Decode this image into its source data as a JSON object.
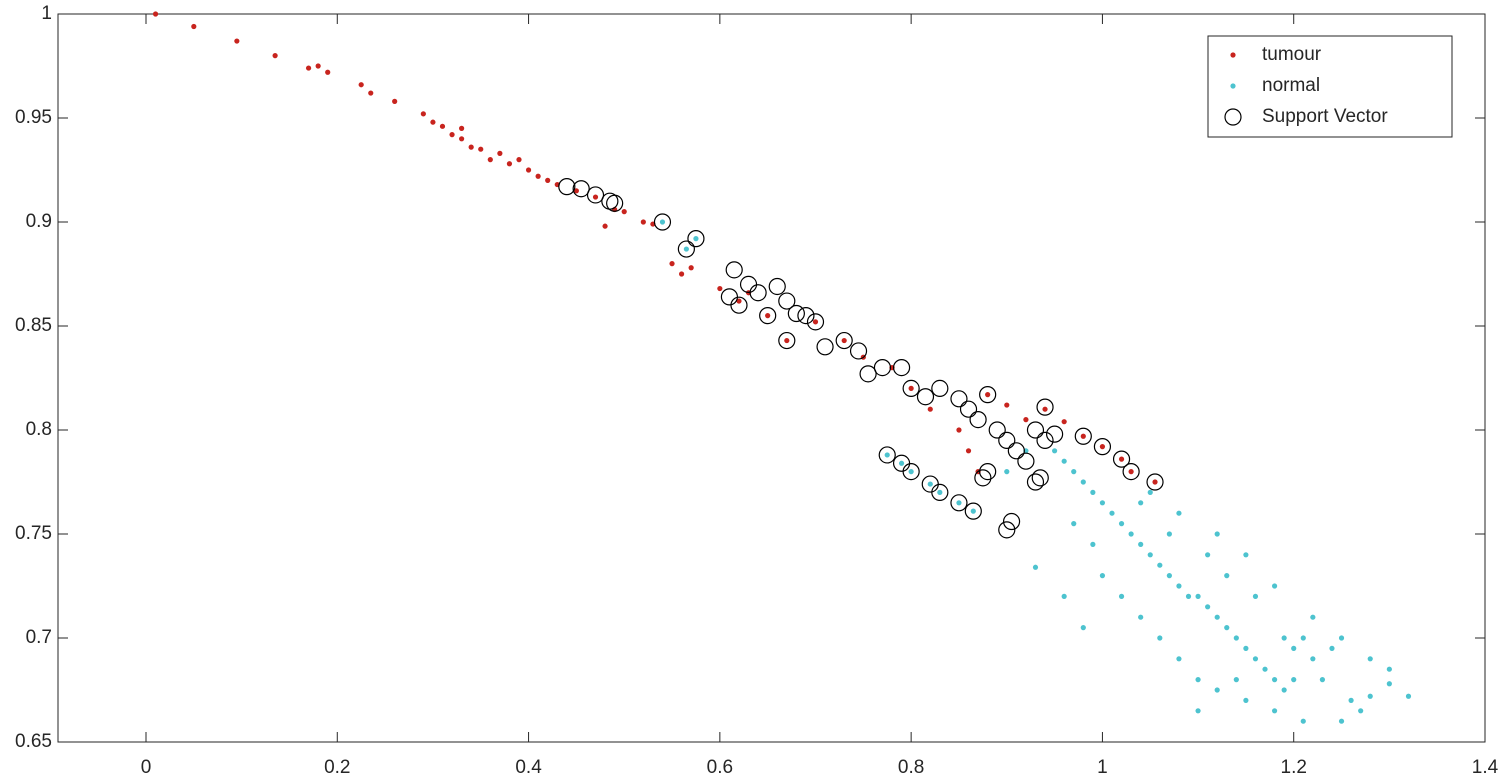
{
  "chart_data": {
    "type": "scatter",
    "xlim": [
      -0.092,
      1.4
    ],
    "ylim": [
      0.65,
      1
    ],
    "xticks": [
      0,
      0.2,
      0.4,
      0.6,
      0.8,
      1,
      1.2,
      1.4
    ],
    "yticks": [
      0.65,
      0.7,
      0.75,
      0.8,
      0.85,
      0.9,
      0.95,
      1
    ],
    "grid": false,
    "legend": "northeast",
    "series": [
      {
        "name": "tumour",
        "color": "#c8241e",
        "marker": "dot",
        "x": [
          0.01,
          0.05,
          0.095,
          0.135,
          0.17,
          0.18,
          0.19,
          0.225,
          0.235,
          0.26,
          0.29,
          0.3,
          0.31,
          0.32,
          0.33,
          0.34,
          0.35,
          0.36,
          0.37,
          0.38,
          0.39,
          0.4,
          0.41,
          0.42,
          0.43,
          0.45,
          0.47,
          0.49,
          0.5,
          0.52,
          0.53,
          0.55,
          0.56,
          0.57,
          0.6,
          0.62,
          0.63,
          0.65,
          0.67,
          0.7,
          0.73,
          0.75,
          0.78,
          0.8,
          0.82,
          0.85,
          0.86,
          0.88,
          0.9,
          0.92,
          0.94,
          0.96,
          0.98,
          1.0,
          1.02,
          1.03,
          1.055,
          0.87,
          0.33,
          0.48
        ],
        "y": [
          1.0,
          0.994,
          0.987,
          0.98,
          0.974,
          0.975,
          0.972,
          0.966,
          0.962,
          0.958,
          0.952,
          0.948,
          0.946,
          0.942,
          0.94,
          0.936,
          0.935,
          0.93,
          0.933,
          0.928,
          0.93,
          0.925,
          0.922,
          0.92,
          0.918,
          0.915,
          0.912,
          0.906,
          0.905,
          0.9,
          0.899,
          0.88,
          0.875,
          0.878,
          0.868,
          0.862,
          0.866,
          0.855,
          0.843,
          0.852,
          0.843,
          0.835,
          0.83,
          0.82,
          0.81,
          0.8,
          0.79,
          0.817,
          0.812,
          0.805,
          0.81,
          0.804,
          0.797,
          0.792,
          0.786,
          0.78,
          0.775,
          0.78,
          0.945,
          0.898
        ]
      },
      {
        "name": "normal",
        "color": "#4dc3cf",
        "marker": "dot",
        "x": [
          0.54,
          0.565,
          0.575,
          0.775,
          0.79,
          0.8,
          0.82,
          0.83,
          0.85,
          0.865,
          0.93,
          0.95,
          0.96,
          0.97,
          0.98,
          0.99,
          1.0,
          1.01,
          1.02,
          1.03,
          1.04,
          1.05,
          1.06,
          1.07,
          1.08,
          1.09,
          1.1,
          1.11,
          1.12,
          1.13,
          1.14,
          1.15,
          1.16,
          1.17,
          1.18,
          1.19,
          1.2,
          1.21,
          1.22,
          1.23,
          1.25,
          1.26,
          1.27,
          1.28,
          1.3,
          1.32,
          0.99,
          1.0,
          1.02,
          1.04,
          1.06,
          1.08,
          1.1,
          1.12,
          1.15,
          1.18,
          1.21,
          0.97,
          1.05,
          1.08,
          1.12,
          1.15,
          1.18,
          1.22,
          1.25,
          1.28,
          1.3,
          0.96,
          0.98,
          1.1,
          1.14,
          1.19,
          1.24,
          1.04,
          1.07,
          1.11,
          1.13,
          1.16,
          1.2,
          0.9,
          0.92
        ],
        "y": [
          0.9,
          0.887,
          0.892,
          0.788,
          0.784,
          0.78,
          0.774,
          0.77,
          0.765,
          0.761,
          0.734,
          0.79,
          0.785,
          0.78,
          0.775,
          0.77,
          0.765,
          0.76,
          0.755,
          0.75,
          0.745,
          0.74,
          0.735,
          0.73,
          0.725,
          0.72,
          0.72,
          0.715,
          0.71,
          0.705,
          0.7,
          0.695,
          0.69,
          0.685,
          0.68,
          0.675,
          0.695,
          0.7,
          0.69,
          0.68,
          0.66,
          0.67,
          0.665,
          0.672,
          0.678,
          0.672,
          0.745,
          0.73,
          0.72,
          0.71,
          0.7,
          0.69,
          0.68,
          0.675,
          0.67,
          0.665,
          0.66,
          0.755,
          0.77,
          0.76,
          0.75,
          0.74,
          0.725,
          0.71,
          0.7,
          0.69,
          0.685,
          0.72,
          0.705,
          0.665,
          0.68,
          0.7,
          0.695,
          0.765,
          0.75,
          0.74,
          0.73,
          0.72,
          0.68,
          0.78,
          0.79
        ]
      },
      {
        "name": "Support Vector",
        "color": "#000000",
        "marker": "circle",
        "x": [
          0.44,
          0.455,
          0.47,
          0.485,
          0.49,
          0.54,
          0.565,
          0.575,
          0.615,
          0.61,
          0.62,
          0.63,
          0.64,
          0.65,
          0.66,
          0.67,
          0.67,
          0.68,
          0.69,
          0.7,
          0.71,
          0.73,
          0.745,
          0.755,
          0.77,
          0.79,
          0.8,
          0.815,
          0.83,
          0.85,
          0.86,
          0.87,
          0.88,
          0.89,
          0.9,
          0.91,
          0.92,
          0.93,
          0.94,
          0.95,
          0.98,
          1.0,
          1.02,
          1.03,
          1.055,
          0.875,
          0.88,
          0.905,
          0.9,
          0.93,
          0.935,
          0.775,
          0.79,
          0.8,
          0.82,
          0.83,
          0.85,
          0.865,
          0.94
        ],
        "y": [
          0.917,
          0.916,
          0.913,
          0.91,
          0.909,
          0.9,
          0.887,
          0.892,
          0.877,
          0.864,
          0.86,
          0.87,
          0.866,
          0.855,
          0.869,
          0.862,
          0.843,
          0.856,
          0.855,
          0.852,
          0.84,
          0.843,
          0.838,
          0.827,
          0.83,
          0.83,
          0.82,
          0.816,
          0.82,
          0.815,
          0.81,
          0.805,
          0.817,
          0.8,
          0.795,
          0.79,
          0.785,
          0.8,
          0.795,
          0.798,
          0.797,
          0.792,
          0.786,
          0.78,
          0.775,
          0.777,
          0.78,
          0.756,
          0.752,
          0.775,
          0.777,
          0.788,
          0.784,
          0.78,
          0.774,
          0.77,
          0.765,
          0.761,
          0.811
        ]
      }
    ]
  }
}
